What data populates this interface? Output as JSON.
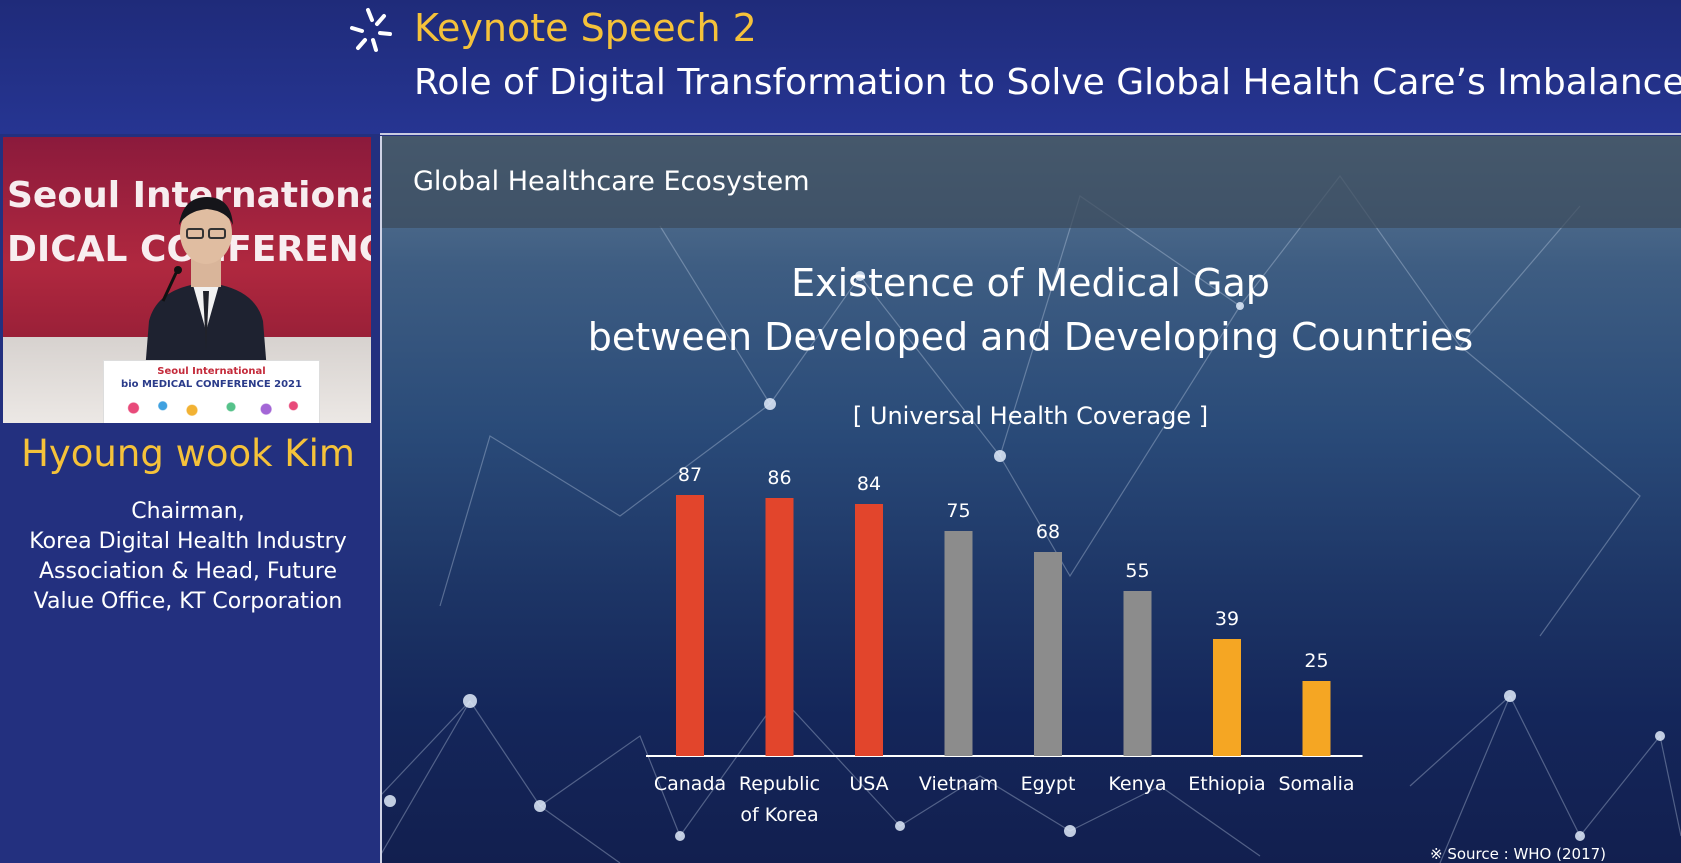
{
  "header": {
    "event_title": "Keynote Speech 2",
    "talk_title": "Role of Digital Transformation to Solve Global Health Care’s Imbalance"
  },
  "speaker": {
    "backdrop_line1": "Seoul International",
    "backdrop_line2": "DICAL CONFERENC",
    "podium_line1": "Seoul International",
    "podium_line2": "bio MEDICAL CONFERENCE 2021",
    "name": "Hyoung wook Kim",
    "role_lines": [
      "Chairman,",
      "Korea Digital Health Industry",
      "Association & Head, Future",
      "Value Office, KT Corporation"
    ]
  },
  "slide": {
    "section_title": "Global Healthcare Ecosystem",
    "chart_title_line1": "Existence of Medical Gap",
    "chart_title_line2": "between Developed and Developing Countries",
    "chart_subtitle": "[ Universal Health Coverage ]",
    "source": "※ Source : WHO (2017)"
  },
  "chart_data": {
    "type": "bar",
    "title": "Existence of Medical Gap between Developed and Developing Countries",
    "subtitle": "[ Universal Health Coverage ]",
    "categories": [
      "Canada",
      "Republic of Korea",
      "USA",
      "Vietnam",
      "Egypt",
      "Kenya",
      "Ethiopia",
      "Somalia"
    ],
    "values": [
      87,
      86,
      84,
      75,
      68,
      55,
      39,
      25
    ],
    "colors": [
      "#e2452c",
      "#e2452c",
      "#e2452c",
      "#8c8c8c",
      "#8c8c8c",
      "#8c8c8c",
      "#f5a623",
      "#f5a623"
    ],
    "ylim": [
      0,
      100
    ],
    "grid": false,
    "legend": "none",
    "data_labels": true
  },
  "colors": {
    "accent_gold": "#f5c23a",
    "header_bg": "#23307f",
    "developed": "#e2452c",
    "middle": "#8c8c8c",
    "developing": "#f5a623"
  }
}
